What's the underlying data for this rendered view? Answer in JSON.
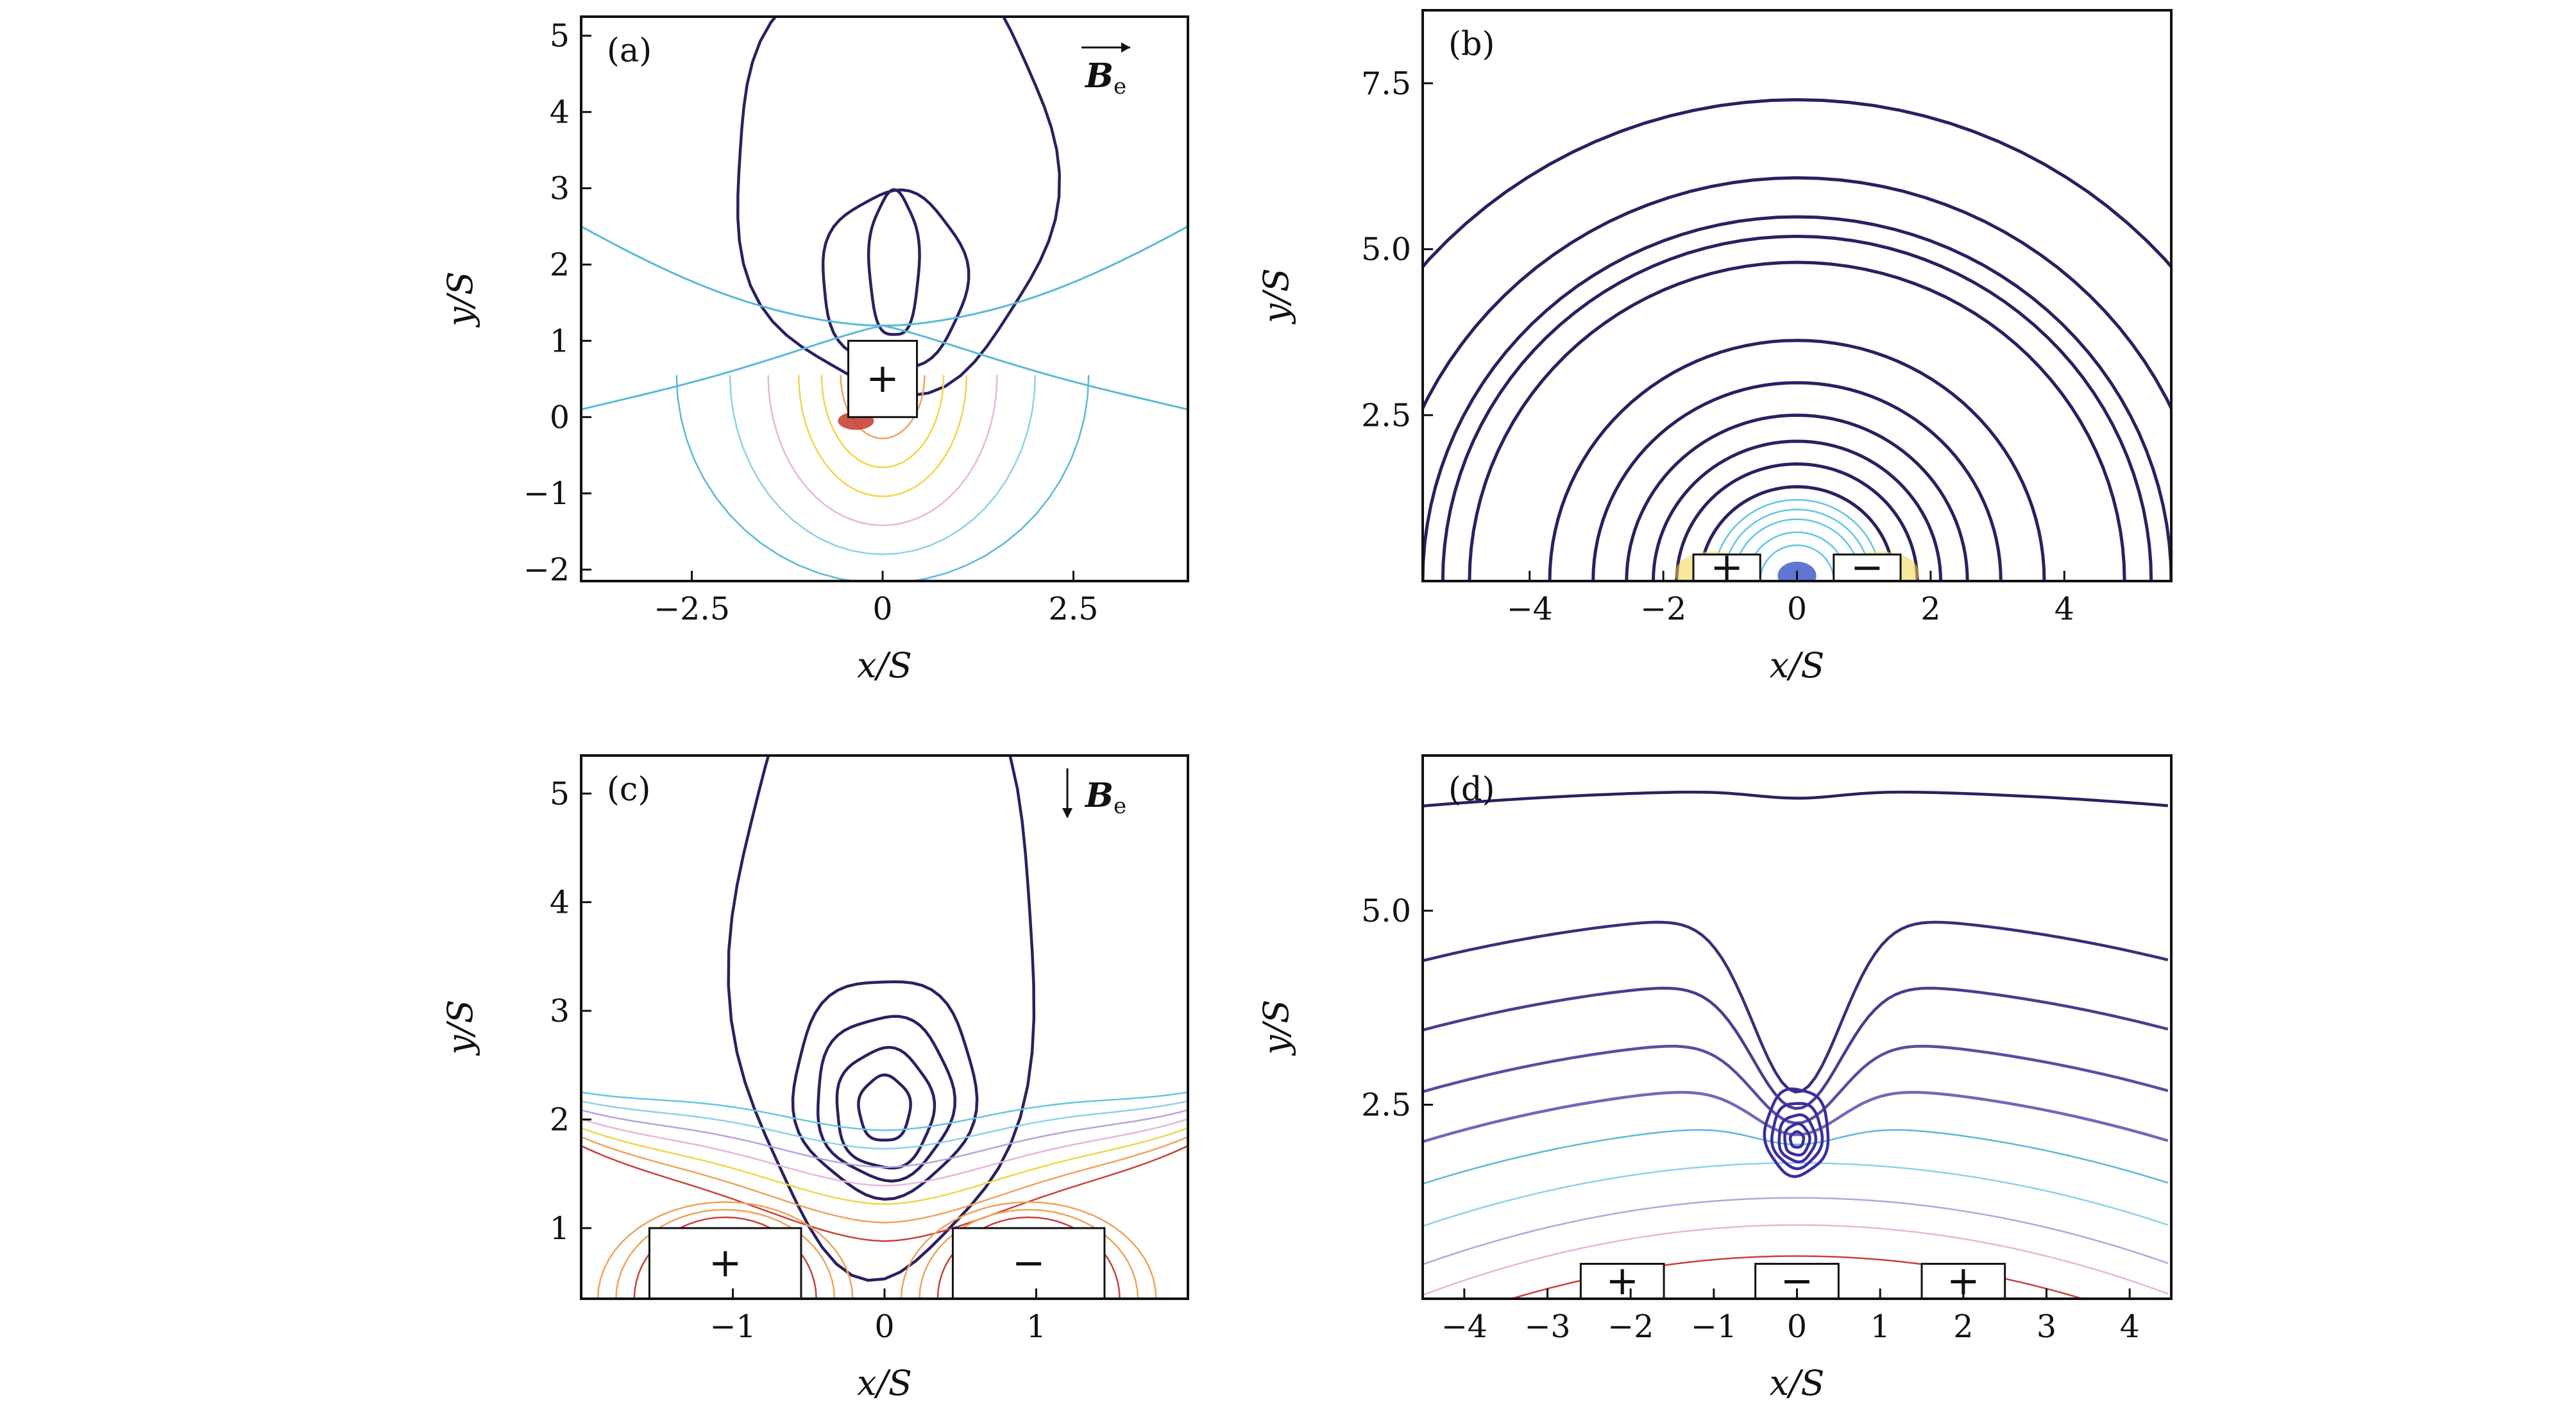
{
  "chart_data": [
    {
      "type": "contour",
      "panel_tag": "(a)",
      "field_label": "B",
      "field_sub": "e",
      "field_arrow": "right",
      "xlabel": "x/S",
      "ylabel": "y/S",
      "xlim": [
        -3.95,
        4.0
      ],
      "ylim": [
        -2.15,
        5.25
      ],
      "xticks": [
        -2.5,
        0,
        2.5
      ],
      "xtick_labels": [
        "−2.5",
        "0",
        "2.5"
      ],
      "yticks": [
        -2,
        -1,
        0,
        1,
        2,
        3,
        4,
        5
      ],
      "ytick_labels": [
        "−2",
        "−1",
        "0",
        "1",
        "2",
        "3",
        "4",
        "5"
      ],
      "magnets": [
        {
          "sign": "+",
          "x0": -0.45,
          "x1": 0.45,
          "y0": 0.0,
          "y1": 1.0
        }
      ],
      "contour_families": [
        {
          "kind": "loops",
          "color": "#2a2060",
          "cx": 0.15,
          "cy": 1.15,
          "rx": [
            0.33,
            0.95,
            2.1
          ],
          "ry": [
            0.95,
            1.15,
            2.85
          ],
          "center_y_offsets": [
            0.85,
            0.65,
            2.05
          ]
        },
        {
          "kind": "dipole-below",
          "colors": [
            "#5ab9d6",
            "#8fd0e8",
            "#f3d44a",
            "#f0a35a",
            "#e7b6da"
          ],
          "magnet_center": [
            0,
            0.5
          ]
        }
      ]
    },
    {
      "type": "contour",
      "panel_tag": "(b)",
      "xlabel": "x/S",
      "ylabel": "y/S",
      "xlim": [
        -5.6,
        5.6
      ],
      "ylim": [
        0,
        8.6
      ],
      "xticks": [
        -4,
        -2,
        0,
        2,
        4
      ],
      "xtick_labels": [
        "−4",
        "−2",
        "0",
        "2",
        "4"
      ],
      "yticks": [
        2.5,
        5.0,
        7.5
      ],
      "ytick_labels": [
        "2.5",
        "5.0",
        "7.5"
      ],
      "magnets": [
        {
          "sign": "+",
          "x0": -1.55,
          "x1": -0.55,
          "y0": 0.0,
          "y1": 0.4
        },
        {
          "sign": "−",
          "x0": 0.55,
          "x1": 1.55,
          "y0": 0.0,
          "y1": 0.4
        }
      ],
      "contour_families": [
        {
          "kind": "semicircles",
          "color": "#2a2060",
          "radii": [
            1.45,
            1.8,
            2.15,
            2.55,
            3.05,
            3.7,
            4.9,
            5.3,
            5.6,
            6.2,
            7.4
          ]
        },
        {
          "kind": "semicircles",
          "color": "#63c6e2",
          "radii": [
            0.55,
            0.75,
            0.95,
            1.1,
            1.25
          ]
        }
      ]
    },
    {
      "type": "contour",
      "panel_tag": "(c)",
      "field_label": "B",
      "field_sub": "e",
      "field_arrow": "down",
      "xlabel": "x/S",
      "ylabel": "y/S",
      "xlim": [
        -2.0,
        2.0
      ],
      "ylim": [
        0.35,
        5.35
      ],
      "xticks": [
        -1,
        0,
        1
      ],
      "xtick_labels": [
        "−1",
        "0",
        "1"
      ],
      "yticks": [
        1,
        2,
        3,
        4,
        5
      ],
      "ytick_labels": [
        "1",
        "2",
        "3",
        "4",
        "5"
      ],
      "magnets": [
        {
          "sign": "+",
          "x0": -1.55,
          "x1": -0.55,
          "y0": 0.35,
          "y1": 1.0
        },
        {
          "sign": "−",
          "x0": 0.45,
          "x1": 1.45,
          "y0": 0.35,
          "y1": 1.0
        }
      ],
      "contour_families": [
        {
          "kind": "loops",
          "color": "#2a2060",
          "cx": 0.0,
          "cy": 2.1,
          "rx": [
            0.17,
            0.32,
            0.45,
            0.6,
            1.0
          ],
          "ry": [
            0.3,
            0.55,
            0.75,
            1.0,
            2.95
          ],
          "center_y_offsets": [
            0.0,
            0.0,
            0.1,
            0.2,
            1.45
          ]
        },
        {
          "kind": "bands",
          "colors": [
            "#63c6e2",
            "#8fd0e8",
            "#b8a3dc",
            "#e7b6da",
            "#f3d44a",
            "#f0a35a",
            "#c8413a"
          ]
        }
      ]
    },
    {
      "type": "contour",
      "panel_tag": "(d)",
      "xlabel": "x/S",
      "ylabel": "y/S",
      "xlim": [
        -4.5,
        4.5
      ],
      "ylim": [
        0.0,
        7.0
      ],
      "xticks": [
        -4,
        -3,
        -2,
        -1,
        0,
        1,
        2,
        3,
        4
      ],
      "xtick_labels": [
        "−4",
        "−3",
        "−2",
        "−1",
        "0",
        "1",
        "2",
        "3",
        "4"
      ],
      "yticks": [
        2.5,
        5.0
      ],
      "ytick_labels": [
        "2.5",
        "5.0"
      ],
      "magnets": [
        {
          "sign": "+",
          "x0": -2.6,
          "x1": -1.6,
          "y0": 0.0,
          "y1": 0.45
        },
        {
          "sign": "−",
          "x0": -0.5,
          "x1": 0.5,
          "y0": 0.0,
          "y1": 0.45
        },
        {
          "sign": "+",
          "x0": 1.5,
          "x1": 2.5,
          "y0": 0.0,
          "y1": 0.45
        }
      ],
      "contour_families": [
        {
          "kind": "dimple-layers",
          "colors": [
            "#2a2060",
            "#3b2d78",
            "#4a3d8c",
            "#5a4ea0",
            "#6e6ab8",
            "#5ab9d6",
            "#8fd0e8",
            "#b8a3dc",
            "#e7b6da",
            "#c8413a"
          ]
        },
        {
          "kind": "loops",
          "color": "#3b2d9c",
          "cx": 0.0,
          "cy": 2.05,
          "rx": [
            0.08,
            0.15,
            0.22,
            0.3,
            0.38
          ],
          "ry": [
            0.1,
            0.2,
            0.3,
            0.42,
            0.56
          ],
          "center_y_offsets": [
            0,
            0,
            0.02,
            0.06,
            0.1
          ]
        }
      ]
    }
  ]
}
